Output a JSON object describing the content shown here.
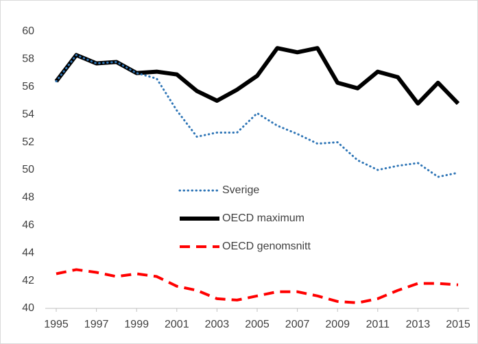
{
  "chart_data": {
    "type": "line",
    "x": [
      1995,
      1996,
      1997,
      1998,
      1999,
      2000,
      2001,
      2002,
      2003,
      2004,
      2005,
      2006,
      2007,
      2008,
      2009,
      2010,
      2011,
      2012,
      2013,
      2014,
      2015
    ],
    "series": [
      {
        "name": "Sverige",
        "color": "#2e75b6",
        "values": [
          56.4,
          58.3,
          57.7,
          57.8,
          57.0,
          56.6,
          54.3,
          52.4,
          52.7,
          52.7,
          54.1,
          53.2,
          52.6,
          51.9,
          52.0,
          50.7,
          50.0,
          50.3,
          50.5,
          49.5,
          49.8
        ]
      },
      {
        "name": "OECD maximum",
        "color": "#000000",
        "values": [
          56.4,
          58.3,
          57.7,
          57.8,
          57.0,
          57.1,
          56.9,
          55.7,
          55.0,
          55.8,
          56.8,
          58.8,
          58.5,
          58.8,
          56.3,
          55.9,
          57.1,
          56.7,
          54.8,
          56.3,
          54.8
        ]
      },
      {
        "name": "OECD genomsnitt",
        "color": "#ff0000",
        "values": [
          42.5,
          42.8,
          42.6,
          42.3,
          42.5,
          42.3,
          41.6,
          41.3,
          40.7,
          40.6,
          40.9,
          41.2,
          41.2,
          40.9,
          40.5,
          40.4,
          40.7,
          41.3,
          41.8,
          41.8,
          41.7
        ]
      }
    ],
    "xlim": [
      1995,
      2015
    ],
    "xticks": [
      1995,
      1997,
      1999,
      2001,
      2003,
      2005,
      2007,
      2009,
      2011,
      2013,
      2015
    ],
    "ylim": [
      40,
      60
    ],
    "yticks": [
      40,
      42,
      44,
      46,
      48,
      50,
      52,
      54,
      56,
      58,
      60
    ],
    "grid": false,
    "legend": "center"
  }
}
